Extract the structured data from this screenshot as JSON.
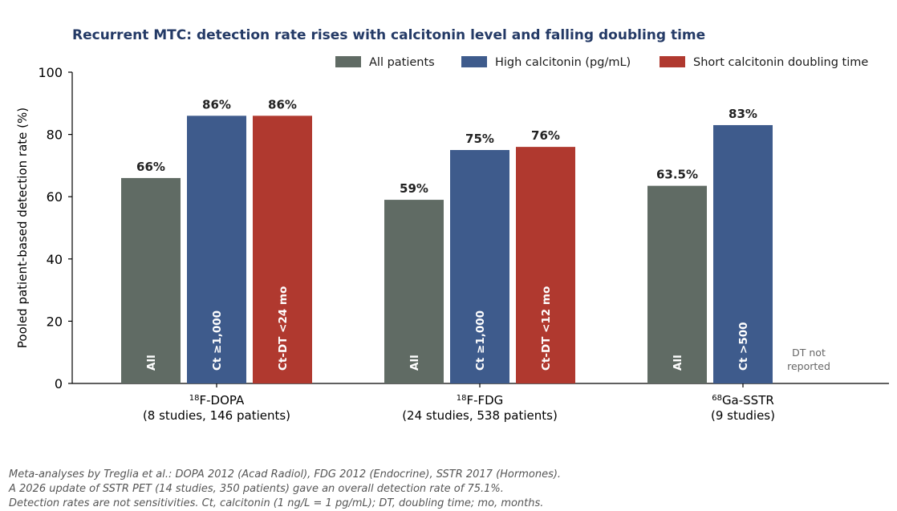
{
  "chart_data": {
    "type": "bar",
    "title": "Recurrent MTC: detection rate rises with calcitonin level and falling doubling time",
    "ylabel": "Pooled patient-based detection rate (%)",
    "ylim": [
      0,
      100
    ],
    "yticks": [
      0,
      20,
      40,
      60,
      80,
      100
    ],
    "legend_position": "top-right",
    "categories": [
      {
        "sup": "18",
        "name": "F-DOPA",
        "sub": "(8 studies, 146 patients)"
      },
      {
        "sup": "18",
        "name": "F-FDG",
        "sub": "(24 studies, 538 patients)"
      },
      {
        "sup": "68",
        "name": "Ga-SSTR",
        "sub": "(9 studies)"
      }
    ],
    "series": [
      {
        "name": "All patients",
        "color": "#606b64",
        "values": [
          66,
          59,
          63.5
        ],
        "value_labels": [
          "66%",
          "59%",
          "63.5%"
        ],
        "bar_labels": [
          "All",
          "All",
          "All"
        ]
      },
      {
        "name": "High calcitonin (pg/mL)",
        "color": "#3e5b8c",
        "values": [
          86,
          75,
          83
        ],
        "value_labels": [
          "86%",
          "75%",
          "83%"
        ],
        "bar_labels": [
          "Ct ≥1,000",
          "Ct ≥1,000",
          "Ct >500"
        ]
      },
      {
        "name": "Short calcitonin doubling time",
        "color": "#b0392f",
        "values": [
          86,
          76,
          null
        ],
        "value_labels": [
          "86%",
          "76%",
          null
        ],
        "bar_labels": [
          "Ct-DT <24 mo",
          "Ct-DT <12 mo",
          null
        ]
      }
    ],
    "annotations": [
      {
        "category_index": 2,
        "series_index": 2,
        "lines": [
          "DT not",
          "reported"
        ]
      }
    ]
  },
  "footnotes": [
    "Meta-analyses by Treglia et al.: DOPA 2012 (Acad Radiol), FDG 2012 (Endocrine), SSTR 2017 (Hormones).",
    "A 2026 update of SSTR PET (14 studies, 350 patients) gave an overall detection rate of 75.1%.",
    "Detection rates are not sensitivities. Ct, calcitonin (1 ng/L = 1 pg/mL); DT, doubling time; mo, months."
  ]
}
